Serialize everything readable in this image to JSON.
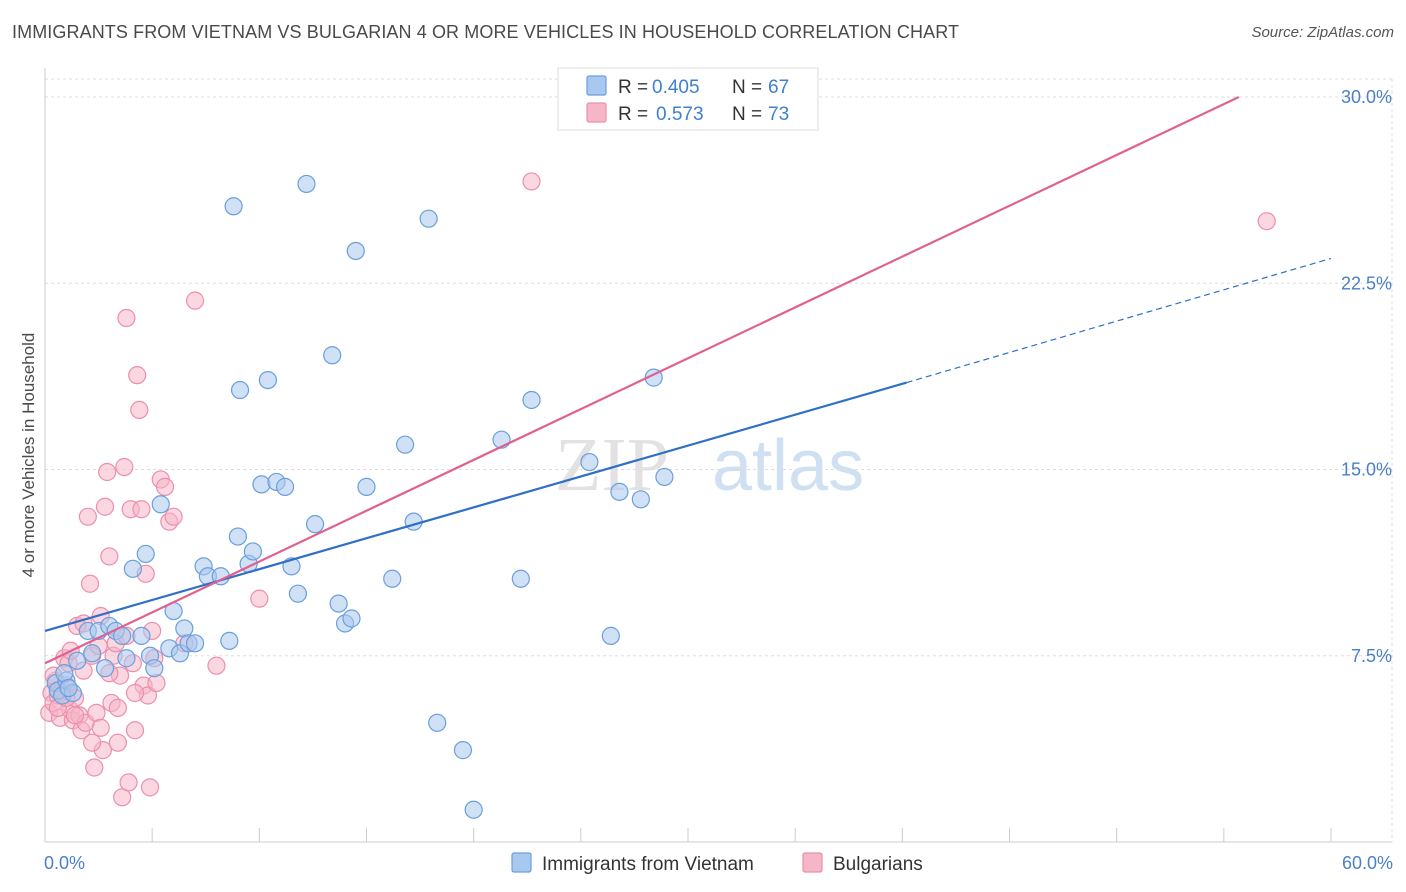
{
  "title": "IMMIGRANTS FROM VIETNAM VS BULGARIAN 4 OR MORE VEHICLES IN HOUSEHOLD CORRELATION CHART",
  "source": "Source: ZipAtlas.com",
  "watermark": {
    "zip": "ZIP",
    "atlas": "atlas"
  },
  "colors": {
    "blue_fill": "#a9c8ef",
    "blue_stroke": "#6a9fdc",
    "blue_line": "#2f6fc6",
    "pink_fill": "#f5b6c8",
    "pink_stroke": "#ec8fac",
    "pink_line": "#e06190",
    "grid": "#dddddd",
    "axis_text": "#4a7fc9"
  },
  "legend": {
    "rows": [
      {
        "r_label": "R =",
        "r_value": "0.405",
        "n_label": "N =",
        "n_value": "67",
        "series": "blue"
      },
      {
        "r_label": "R =",
        "r_value": "0.573",
        "n_label": "N =",
        "n_value": "73",
        "series": "pink"
      }
    ]
  },
  "chart_data": {
    "type": "scatter",
    "xlabel": "",
    "ylabel": "4 or more Vehicles in Household",
    "xlim": [
      0,
      60
    ],
    "ylim": [
      0,
      30
    ],
    "x_tick_labels": [
      "0.0%",
      "60.0%"
    ],
    "y_ticks": [
      7.5,
      15.0,
      22.5,
      30.0
    ],
    "y_tick_labels": [
      "7.5%",
      "15.0%",
      "22.5%",
      "30.0%"
    ],
    "series": [
      {
        "name": "Immigrants from Vietnam",
        "color": "blue",
        "trend": {
          "x0": 0,
          "y0": 8.5,
          "x1": 40.2,
          "y1": 18.5,
          "dash_to_x": 60,
          "dash_to_y": 23.5
        },
        "points": [
          [
            0.5,
            6.4
          ],
          [
            0.6,
            6.1
          ],
          [
            0.8,
            5.9
          ],
          [
            1.0,
            6.5
          ],
          [
            1.3,
            6.0
          ],
          [
            1.5,
            7.3
          ],
          [
            2.0,
            8.5
          ],
          [
            2.2,
            7.6
          ],
          [
            2.5,
            8.5
          ],
          [
            3.0,
            8.7
          ],
          [
            3.3,
            8.5
          ],
          [
            3.8,
            7.4
          ],
          [
            4.1,
            11.0
          ],
          [
            4.5,
            8.3
          ],
          [
            4.7,
            11.6
          ],
          [
            4.9,
            7.5
          ],
          [
            5.1,
            7.0
          ],
          [
            5.4,
            13.6
          ],
          [
            5.8,
            7.8
          ],
          [
            6.0,
            9.3
          ],
          [
            6.3,
            7.6
          ],
          [
            6.5,
            8.6
          ],
          [
            6.7,
            8.0
          ],
          [
            7.0,
            8.0
          ],
          [
            7.4,
            11.1
          ],
          [
            7.6,
            10.7
          ],
          [
            8.2,
            10.7
          ],
          [
            8.6,
            8.1
          ],
          [
            9.0,
            12.3
          ],
          [
            8.8,
            25.6
          ],
          [
            9.1,
            18.2
          ],
          [
            9.5,
            11.2
          ],
          [
            9.7,
            11.7
          ],
          [
            10.1,
            14.4
          ],
          [
            10.4,
            18.6
          ],
          [
            10.8,
            14.5
          ],
          [
            11.2,
            14.3
          ],
          [
            11.5,
            11.1
          ],
          [
            11.8,
            10.0
          ],
          [
            12.2,
            26.5
          ],
          [
            12.6,
            12.8
          ],
          [
            13.4,
            19.6
          ],
          [
            13.7,
            9.6
          ],
          [
            14.0,
            8.8
          ],
          [
            14.3,
            9.0
          ],
          [
            15.0,
            14.3
          ],
          [
            14.5,
            23.8
          ],
          [
            16.2,
            10.6
          ],
          [
            16.8,
            16.0
          ],
          [
            17.2,
            12.9
          ],
          [
            17.9,
            25.1
          ],
          [
            18.3,
            4.8
          ],
          [
            19.5,
            3.7
          ],
          [
            20.0,
            1.3
          ],
          [
            21.3,
            16.2
          ],
          [
            22.2,
            10.6
          ],
          [
            22.7,
            17.8
          ],
          [
            25.4,
            15.3
          ],
          [
            26.4,
            8.3
          ],
          [
            26.8,
            14.1
          ],
          [
            27.8,
            13.8
          ],
          [
            28.4,
            18.7
          ],
          [
            28.9,
            14.7
          ],
          [
            0.9,
            6.8
          ],
          [
            1.1,
            6.2
          ],
          [
            2.8,
            7.0
          ],
          [
            3.6,
            8.3
          ]
        ]
      },
      {
        "name": "Bulgarians",
        "color": "pink",
        "trend": {
          "x0": 0,
          "y0": 7.2,
          "x1": 55.7,
          "y1": 30.0
        },
        "points": [
          [
            0.2,
            5.2
          ],
          [
            0.3,
            6.0
          ],
          [
            0.4,
            5.6
          ],
          [
            0.5,
            6.5
          ],
          [
            0.6,
            5.9
          ],
          [
            0.7,
            5.0
          ],
          [
            0.8,
            6.1
          ],
          [
            0.9,
            7.4
          ],
          [
            1.0,
            6.3
          ],
          [
            1.1,
            7.2
          ],
          [
            1.2,
            5.3
          ],
          [
            1.3,
            4.9
          ],
          [
            1.4,
            5.8
          ],
          [
            1.5,
            8.7
          ],
          [
            1.6,
            5.1
          ],
          [
            1.7,
            4.5
          ],
          [
            1.8,
            6.9
          ],
          [
            1.9,
            4.8
          ],
          [
            2.0,
            13.1
          ],
          [
            2.1,
            10.4
          ],
          [
            2.2,
            7.5
          ],
          [
            2.3,
            3.0
          ],
          [
            2.4,
            5.2
          ],
          [
            2.5,
            7.9
          ],
          [
            2.6,
            4.6
          ],
          [
            2.7,
            3.7
          ],
          [
            2.8,
            13.5
          ],
          [
            2.9,
            14.9
          ],
          [
            3.0,
            11.5
          ],
          [
            3.1,
            5.6
          ],
          [
            3.2,
            7.5
          ],
          [
            3.3,
            8.0
          ],
          [
            3.4,
            4.0
          ],
          [
            3.5,
            6.7
          ],
          [
            3.6,
            1.8
          ],
          [
            3.7,
            15.1
          ],
          [
            3.8,
            21.1
          ],
          [
            3.9,
            2.4
          ],
          [
            4.0,
            13.4
          ],
          [
            4.1,
            7.2
          ],
          [
            4.2,
            4.5
          ],
          [
            4.3,
            18.8
          ],
          [
            4.4,
            17.4
          ],
          [
            4.5,
            13.4
          ],
          [
            4.6,
            6.3
          ],
          [
            4.7,
            10.8
          ],
          [
            4.8,
            5.9
          ],
          [
            4.9,
            2.2
          ],
          [
            5.0,
            8.5
          ],
          [
            5.1,
            7.4
          ],
          [
            5.2,
            6.4
          ],
          [
            5.4,
            14.6
          ],
          [
            5.6,
            14.3
          ],
          [
            5.8,
            12.9
          ],
          [
            6.0,
            13.1
          ],
          [
            6.5,
            8.0
          ],
          [
            7.0,
            21.8
          ],
          [
            8.0,
            7.1
          ],
          [
            10.0,
            9.8
          ],
          [
            22.7,
            26.6
          ],
          [
            57.0,
            25.0
          ],
          [
            0.4,
            6.7
          ],
          [
            0.6,
            5.4
          ],
          [
            1.0,
            5.8
          ],
          [
            1.4,
            5.1
          ],
          [
            1.8,
            8.8
          ],
          [
            2.2,
            4.0
          ],
          [
            2.6,
            9.1
          ],
          [
            3.0,
            6.8
          ],
          [
            3.4,
            5.4
          ],
          [
            3.8,
            8.3
          ],
          [
            4.2,
            6.0
          ],
          [
            1.2,
            7.7
          ]
        ]
      }
    ]
  },
  "bottom_legend": {
    "items": [
      {
        "label": "Immigrants from Vietnam",
        "series": "blue"
      },
      {
        "label": "Bulgarians",
        "series": "pink"
      }
    ]
  }
}
